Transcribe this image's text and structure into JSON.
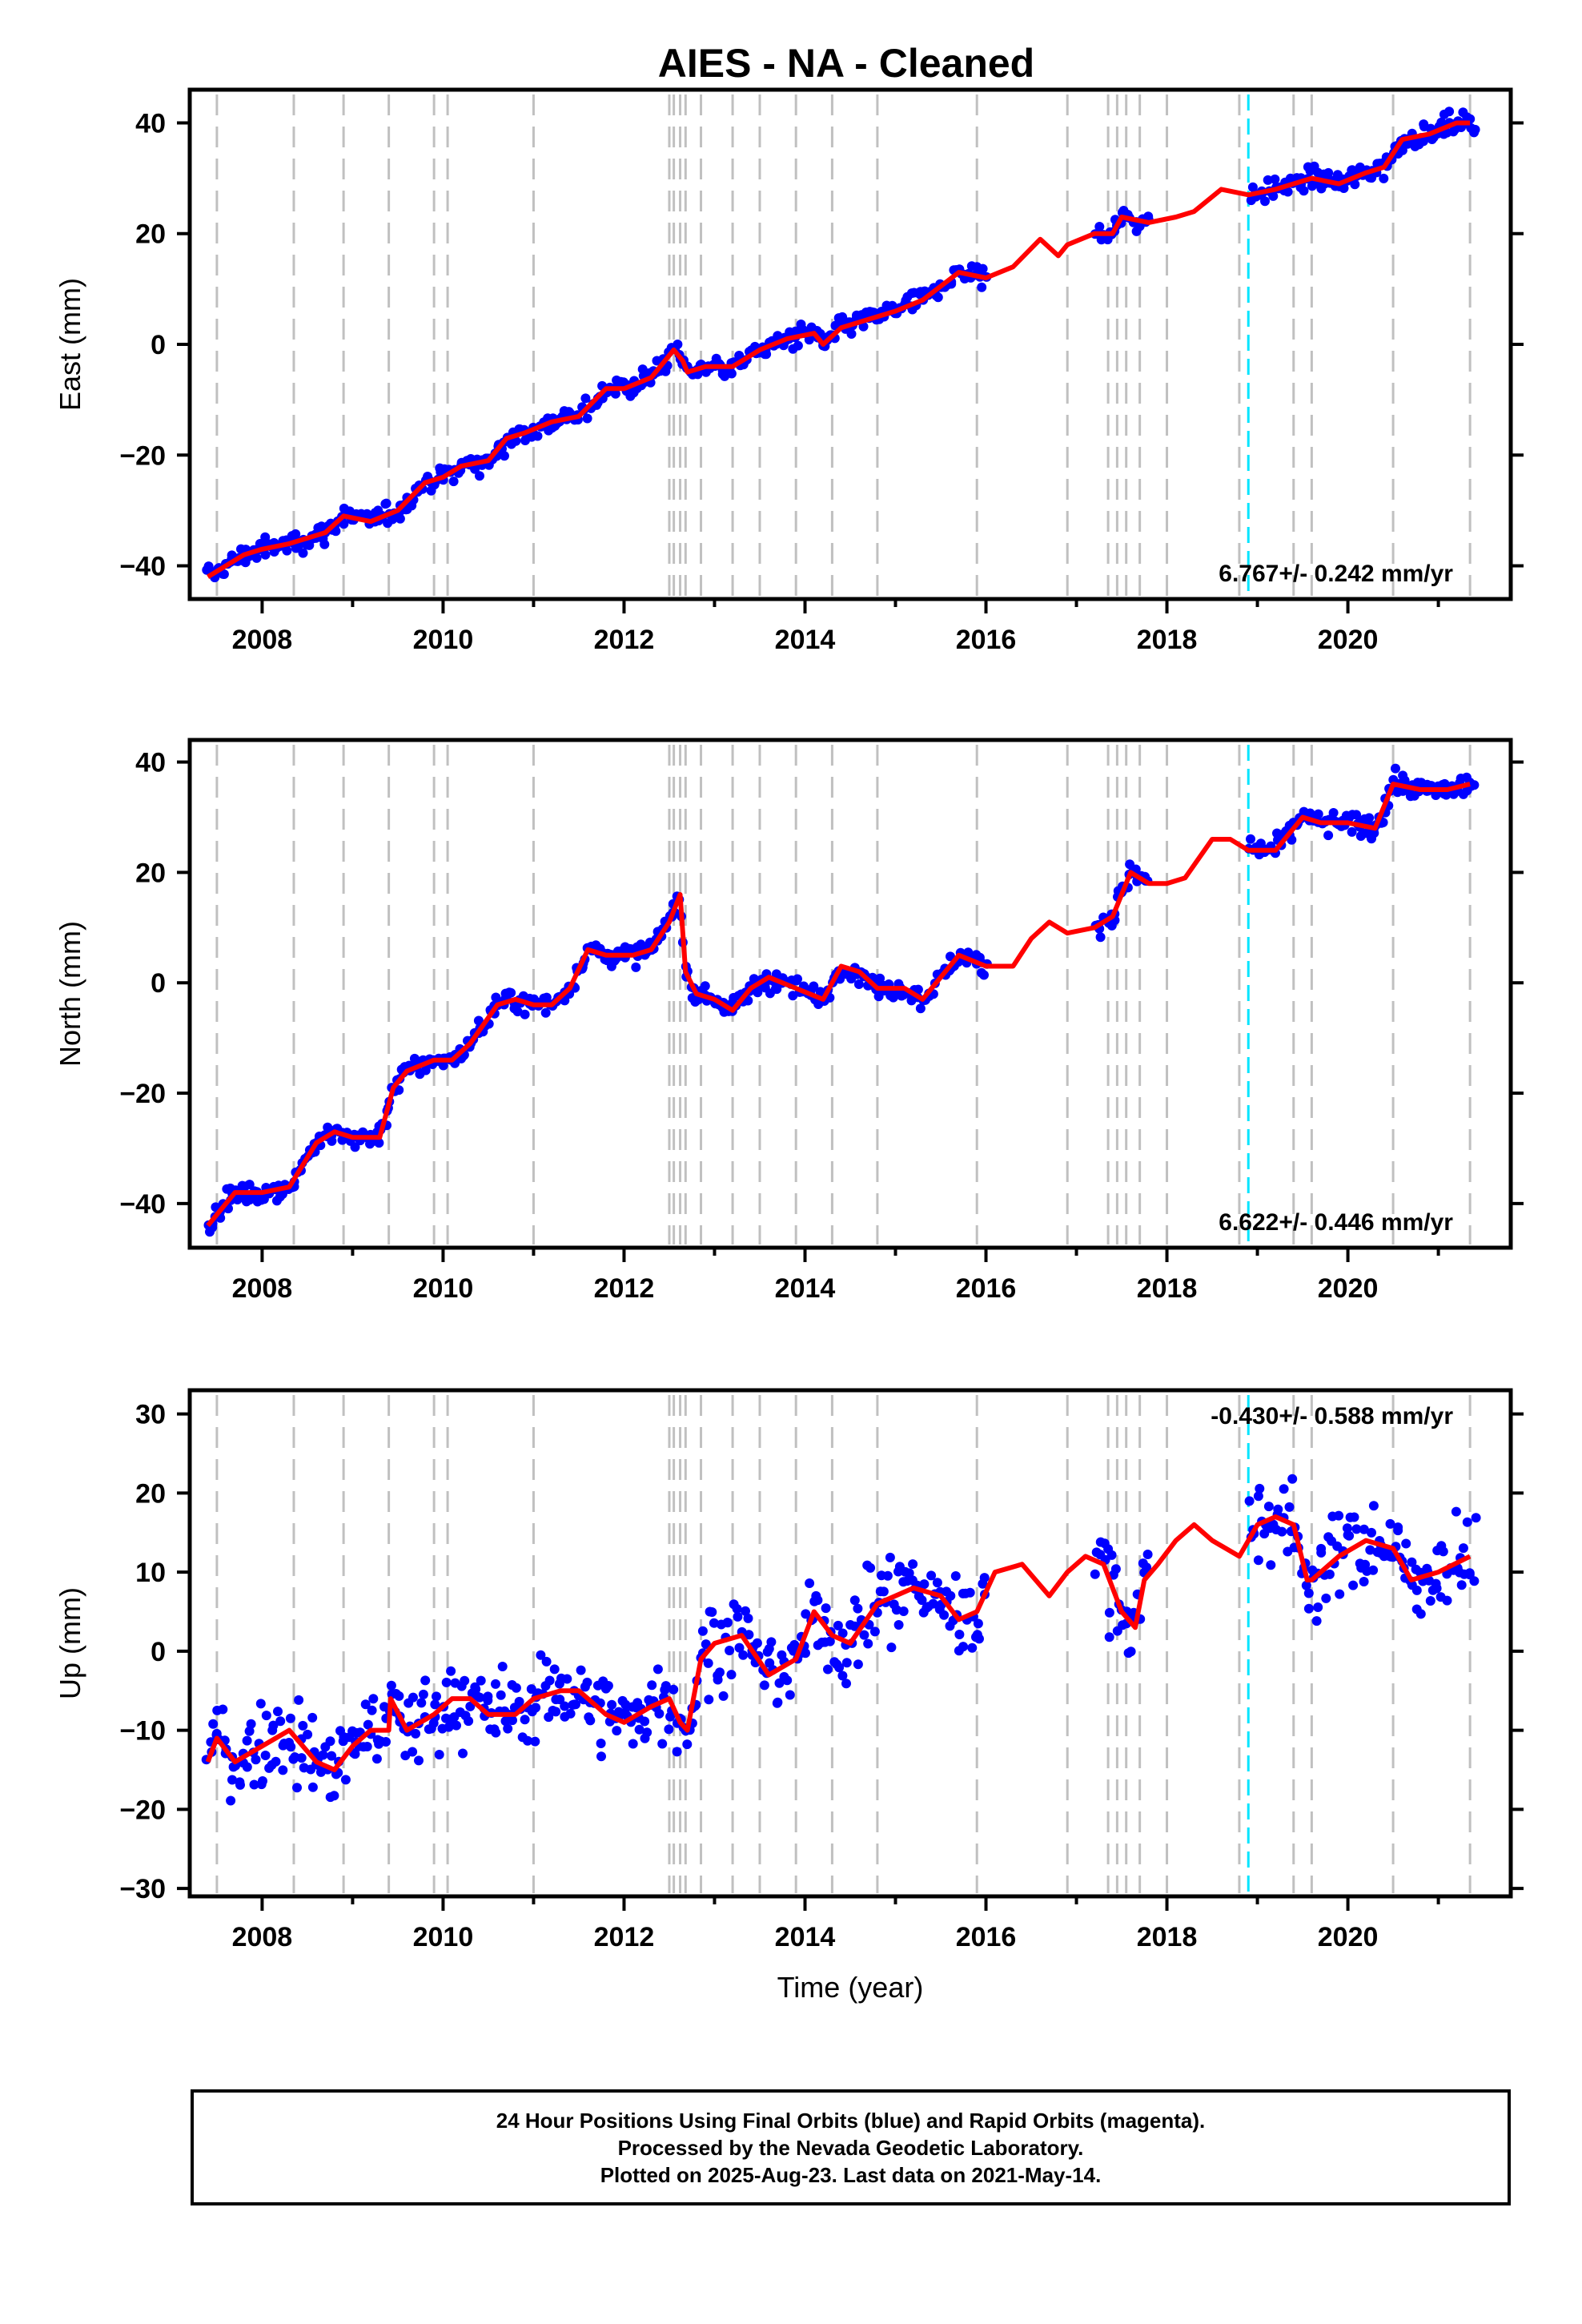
{
  "title": "AIES  - NA - Cleaned",
  "colors": {
    "data": "#0000ff",
    "model": "#ff0000",
    "event_line": "#c0c0c0",
    "rapid_boundary": "#00e5ff",
    "axes": "#000000"
  },
  "x_axis": {
    "label": "Time (year)",
    "range": [
      2007.2,
      2021.8
    ],
    "ticks": [
      "2008",
      "2010",
      "2012",
      "2014",
      "2016",
      "2018",
      "2020"
    ]
  },
  "chart_data": [
    {
      "type": "scatter",
      "panel": "east",
      "ylabel": "East (mm)",
      "ylim": [
        -46,
        46
      ],
      "yticks": [
        "40",
        "20",
        "0",
        "−20",
        "−40"
      ],
      "rate_label": "6.767+/- 0.242 mm/yr",
      "rate_position": "bottom-right",
      "grid": false,
      "series": [
        {
          "kind": "model",
          "x": [
            2007.4,
            2007.8,
            2008.0,
            2008.3,
            2008.7,
            2008.9,
            2009.2,
            2009.5,
            2009.8,
            2010.0,
            2010.2,
            2010.5,
            2010.7,
            2010.9,
            2011.2,
            2011.5,
            2011.8,
            2012.0,
            2012.3,
            2012.55,
            2012.65,
            2012.7,
            2012.9,
            2013.2,
            2013.5,
            2013.8,
            2014.1,
            2014.2,
            2014.4,
            2014.8,
            2015.0,
            2015.3,
            2015.7,
            2016.0,
            2016.3,
            2016.6,
            2016.8,
            2016.9,
            2017.2,
            2017.4,
            2017.5,
            2017.8,
            2018.1,
            2018.3,
            2018.6,
            2018.9,
            2019.2,
            2019.4,
            2019.6,
            2019.9,
            2020.2,
            2020.4,
            2020.6,
            2020.9,
            2021.2,
            2021.35
          ],
          "y": [
            -42,
            -38,
            -37,
            -36,
            -34,
            -31,
            -32,
            -30,
            -25,
            -24,
            -22,
            -21,
            -17,
            -16,
            -14,
            -13,
            -8,
            -8,
            -6,
            -1,
            -3,
            -5,
            -4,
            -4,
            -1,
            1,
            2,
            0,
            3,
            5,
            6,
            8,
            13,
            12,
            14,
            19,
            16,
            18,
            20,
            20,
            23,
            22,
            23,
            24,
            28,
            27,
            28,
            29,
            30,
            29,
            31,
            32,
            37,
            38,
            40,
            40
          ]
        },
        {
          "kind": "observations",
          "x_range": [
            2007.4,
            2021.4
          ],
          "gaps": [
            [
              2016.0,
              2017.2
            ],
            [
              2017.8,
              2018.9
            ]
          ],
          "scatter_sd": 1.6
        }
      ],
      "event_lines": [
        2007.5,
        2008.35,
        2008.9,
        2009.4,
        2009.9,
        2010.05,
        2011.0,
        2012.5,
        2012.55,
        2012.62,
        2012.68,
        2012.85,
        2013.2,
        2013.5,
        2013.9,
        2014.3,
        2014.8,
        2015.9,
        2016.9,
        2017.35,
        2017.45,
        2017.55,
        2017.7,
        2018.0,
        2018.8,
        2019.4,
        2019.6,
        2020.5,
        2021.35
      ],
      "rapid_boundary": 2018.9
    },
    {
      "type": "scatter",
      "panel": "north",
      "ylabel": "North (mm)",
      "ylim": [
        -48,
        44
      ],
      "yticks": [
        "40",
        "20",
        "0",
        "−20",
        "−40"
      ],
      "rate_label": "6.622+/- 0.446 mm/yr",
      "rate_position": "bottom-right",
      "grid": false,
      "series": [
        {
          "kind": "model",
          "x": [
            2007.4,
            2007.7,
            2008.0,
            2008.3,
            2008.6,
            2008.8,
            2009.0,
            2009.3,
            2009.45,
            2009.6,
            2009.9,
            2010.1,
            2010.3,
            2010.6,
            2010.8,
            2011.0,
            2011.2,
            2011.4,
            2011.6,
            2011.8,
            2012.1,
            2012.3,
            2012.5,
            2012.62,
            2012.68,
            2012.8,
            2013.0,
            2013.2,
            2013.4,
            2013.6,
            2013.9,
            2014.2,
            2014.4,
            2014.6,
            2014.8,
            2015.1,
            2015.3,
            2015.5,
            2015.7,
            2016.0,
            2016.3,
            2016.5,
            2016.7,
            2016.9,
            2017.2,
            2017.4,
            2017.6,
            2017.8,
            2018.0,
            2018.2,
            2018.5,
            2018.7,
            2018.9,
            2019.2,
            2019.5,
            2019.7,
            2020.0,
            2020.3,
            2020.5,
            2020.8,
            2021.1,
            2021.35
          ],
          "y": [
            -44,
            -38,
            -38,
            -37,
            -29,
            -27,
            -28,
            -28,
            -19,
            -16,
            -14,
            -14,
            -11,
            -4,
            -3,
            -4,
            -4,
            -1,
            6,
            5,
            5,
            6,
            11,
            16,
            2,
            -2,
            -3,
            -5,
            -1,
            1,
            -1,
            -3,
            3,
            2,
            -1,
            -1,
            -3,
            1,
            5,
            3,
            3,
            8,
            11,
            9,
            10,
            12,
            20,
            18,
            18,
            19,
            26,
            26,
            24,
            24,
            30,
            29,
            29,
            28,
            36,
            35,
            35,
            36
          ]
        },
        {
          "kind": "observations",
          "x_range": [
            2007.4,
            2021.4
          ],
          "gaps": [
            [
              2016.0,
              2017.2
            ],
            [
              2017.8,
              2018.9
            ]
          ],
          "scatter_sd": 1.6
        }
      ],
      "event_lines": [
        2007.5,
        2008.35,
        2008.9,
        2009.4,
        2009.9,
        2010.05,
        2011.0,
        2012.5,
        2012.55,
        2012.62,
        2012.68,
        2012.85,
        2013.2,
        2013.5,
        2013.9,
        2014.3,
        2014.8,
        2015.9,
        2016.9,
        2017.35,
        2017.45,
        2017.55,
        2017.7,
        2018.0,
        2018.8,
        2019.4,
        2019.6,
        2020.5,
        2021.35
      ],
      "rapid_boundary": 2018.9
    },
    {
      "type": "scatter",
      "panel": "up",
      "ylabel": "Up (mm)",
      "ylim": [
        -31,
        33
      ],
      "yticks": [
        "30",
        "20",
        "10",
        "0",
        "−10",
        "−20",
        "−30"
      ],
      "rate_label": "-0.430+/- 0.588 mm/yr",
      "rate_position": "top-right",
      "grid": false,
      "series": [
        {
          "kind": "model",
          "x": [
            2007.4,
            2007.5,
            2007.7,
            2008.0,
            2008.3,
            2008.6,
            2008.8,
            2009.0,
            2009.2,
            2009.4,
            2009.42,
            2009.6,
            2009.9,
            2010.0,
            2010.1,
            2010.3,
            2010.5,
            2010.8,
            2011.0,
            2011.3,
            2011.5,
            2011.8,
            2012.0,
            2012.3,
            2012.5,
            2012.62,
            2012.7,
            2012.85,
            2013.0,
            2013.3,
            2013.6,
            2013.9,
            2014.1,
            2014.3,
            2014.5,
            2014.8,
            2015.2,
            2015.5,
            2015.7,
            2015.9,
            2016.1,
            2016.4,
            2016.7,
            2016.9,
            2017.1,
            2017.3,
            2017.5,
            2017.65,
            2017.75,
            2017.9,
            2018.1,
            2018.3,
            2018.5,
            2018.8,
            2019.0,
            2019.2,
            2019.4,
            2019.55,
            2019.6,
            2019.9,
            2020.2,
            2020.5,
            2020.7,
            2021.0,
            2021.35
          ],
          "y": [
            -14,
            -11,
            -14,
            -12,
            -10,
            -14,
            -15,
            -12,
            -10,
            -10,
            -6,
            -10,
            -8,
            -7,
            -6,
            -6,
            -8,
            -8,
            -6,
            -5,
            -5,
            -8,
            -9,
            -7,
            -6,
            -9,
            -10,
            -1,
            1,
            2,
            -3,
            -1,
            5,
            2,
            1,
            6,
            8,
            7,
            4,
            5,
            10,
            11,
            7,
            10,
            12,
            11,
            5,
            3,
            9,
            11,
            14,
            16,
            14,
            12,
            16,
            17,
            16,
            9,
            9,
            12,
            14,
            13,
            9,
            10,
            12
          ]
        },
        {
          "kind": "observations",
          "x_range": [
            2007.4,
            2021.4
          ],
          "gaps": [
            [
              2016.0,
              2017.2
            ],
            [
              2017.8,
              2018.9
            ]
          ],
          "scatter_sd": 4.4
        }
      ],
      "event_lines": [
        2007.5,
        2008.35,
        2008.9,
        2009.4,
        2009.9,
        2010.05,
        2011.0,
        2012.5,
        2012.55,
        2012.62,
        2012.68,
        2012.85,
        2013.2,
        2013.5,
        2013.9,
        2014.3,
        2014.8,
        2015.9,
        2016.9,
        2017.35,
        2017.45,
        2017.55,
        2017.7,
        2018.0,
        2018.8,
        2019.4,
        2019.6,
        2020.5,
        2021.35
      ],
      "rapid_boundary": 2018.9
    }
  ],
  "footer": {
    "line1": "24 Hour Positions Using Final Orbits (blue) and Rapid Orbits (magenta).",
    "line2": "Processed by the Nevada Geodetic Laboratory.",
    "line3": "Plotted on 2025-Aug-23. Last data on 2021-May-14."
  }
}
